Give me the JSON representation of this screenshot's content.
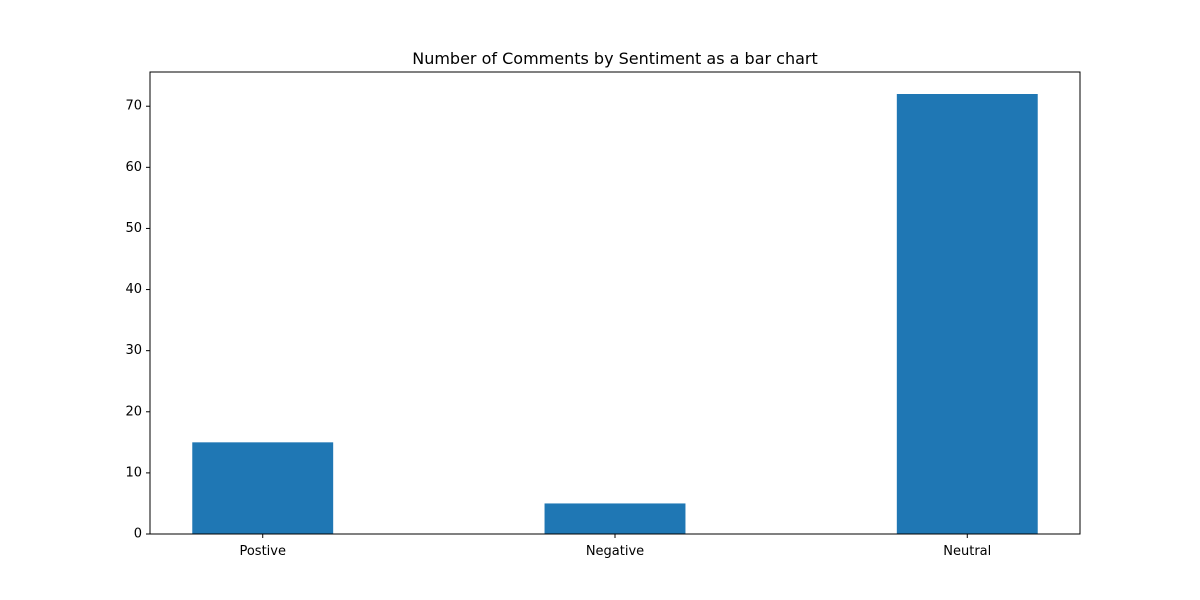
{
  "chart_data": {
    "type": "bar",
    "title": "Number of Comments by Sentiment as a bar chart",
    "xlabel": "",
    "ylabel": "",
    "categories": [
      "Postive",
      "Negative",
      "Neutral"
    ],
    "values": [
      15,
      5,
      72
    ],
    "ylim": [
      0,
      75.6
    ],
    "yticks": [
      0,
      10,
      20,
      30,
      40,
      50,
      60,
      70
    ],
    "bar_color": "#1f77b4",
    "grid": false,
    "legend": "none"
  }
}
